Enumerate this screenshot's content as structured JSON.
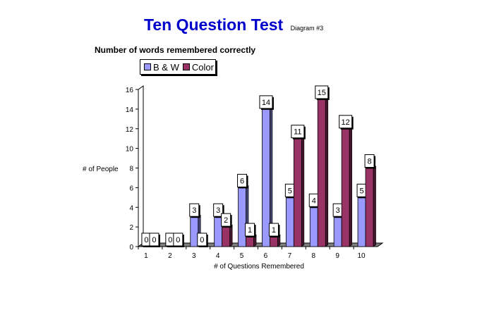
{
  "header": {
    "title": "Ten Question Test",
    "diagram_tag": "Diagram #3",
    "subtitle": "Number of words remembered correctly"
  },
  "legend": [
    {
      "label": "B & W",
      "color": "#9999ff"
    },
    {
      "label": "Color",
      "color": "#993366"
    }
  ],
  "chart_data": {
    "type": "bar",
    "title": "Ten Question Test",
    "subtitle": "Number of words remembered correctly",
    "xlabel": "# of Questions Remembered",
    "ylabel": "# of People",
    "categories": [
      "1",
      "2",
      "3",
      "4",
      "5",
      "6",
      "7",
      "8",
      "9",
      "10"
    ],
    "ylim": [
      0,
      16
    ],
    "yticks": [
      0,
      2,
      4,
      6,
      8,
      10,
      12,
      14,
      16
    ],
    "series": [
      {
        "name": "B & W",
        "color": "#9999ff",
        "values": [
          0,
          0,
          3,
          3,
          6,
          14,
          5,
          4,
          3,
          5
        ]
      },
      {
        "name": "Color",
        "color": "#993366",
        "values": [
          0,
          0,
          0,
          2,
          1,
          1,
          11,
          15,
          12,
          8
        ]
      }
    ],
    "legend_position": "top-left",
    "three_d": true
  }
}
